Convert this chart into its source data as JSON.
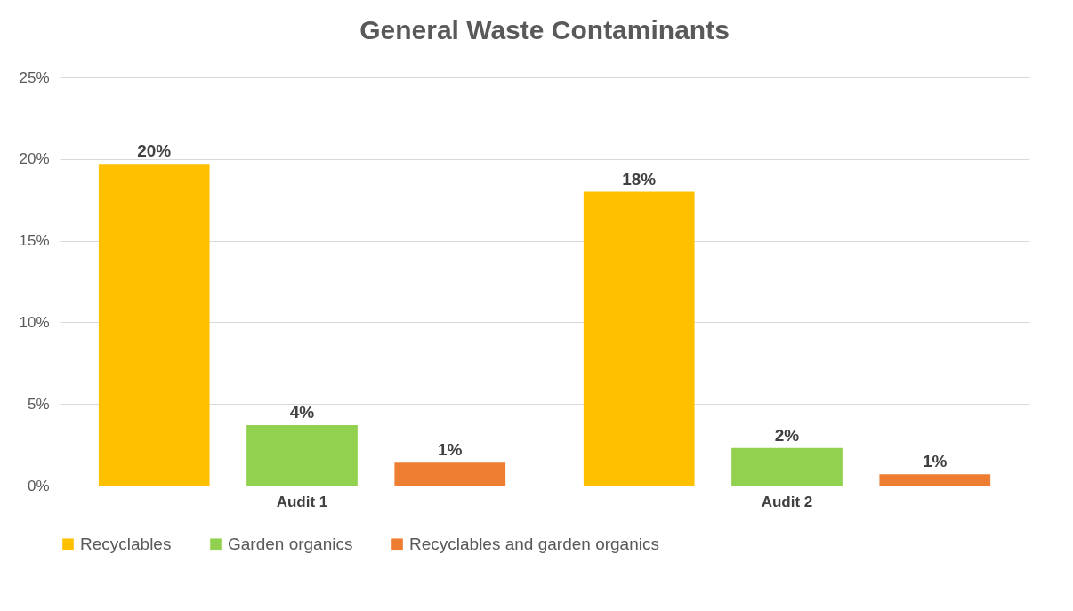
{
  "chart_data": {
    "type": "bar",
    "title": "General Waste Contaminants",
    "categories": [
      "Audit 1",
      "Audit 2"
    ],
    "series": [
      {
        "name": "Recyclables",
        "color": "#ffc000",
        "values": [
          19.7,
          18.0
        ],
        "value_labels": [
          "20%",
          "18%"
        ]
      },
      {
        "name": "Garden organics",
        "color": "#92d050",
        "values": [
          3.7,
          2.3
        ],
        "value_labels": [
          "4%",
          "2%"
        ]
      },
      {
        "name": "Recyclables and garden organics",
        "color": "#ed7d31",
        "values": [
          1.4,
          0.7
        ],
        "value_labels": [
          "1%",
          "1%"
        ]
      }
    ],
    "ylim": [
      0,
      25
    ],
    "yticks": [
      {
        "value": 0,
        "label": "0%"
      },
      {
        "value": 5,
        "label": "5%"
      },
      {
        "value": 10,
        "label": "10%"
      },
      {
        "value": 15,
        "label": "15%"
      },
      {
        "value": 20,
        "label": "20%"
      },
      {
        "value": 25,
        "label": "25%"
      }
    ],
    "grid": "y",
    "legend": "bottom"
  }
}
